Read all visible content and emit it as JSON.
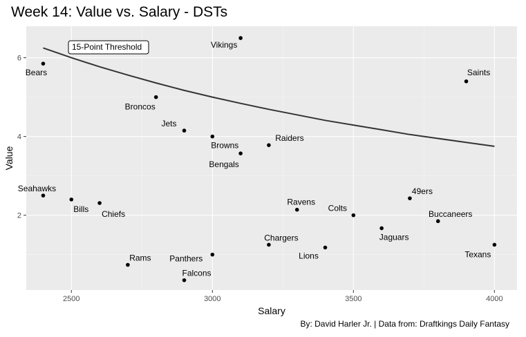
{
  "chart_data": {
    "type": "scatter",
    "title": "Week 14: Value vs. Salary - DSTs",
    "xlabel": "Salary",
    "ylabel": "Value",
    "caption": "By: David Harler Jr. | Data from: Draftkings Daily Fantasy",
    "xlim": [
      2340,
      4080
    ],
    "ylim": [
      0.1,
      6.8
    ],
    "xticks": [
      2500,
      3000,
      3500,
      4000
    ],
    "yticks": [
      2,
      4,
      6
    ],
    "grid": true,
    "legend": "none",
    "colors": {
      "panel": "#EBEBEB",
      "grid_major": "#FFFFFF",
      "grid_minor": "#F5F5F5",
      "point": "#000000",
      "line": "#333333"
    },
    "points": [
      {
        "label": "Bears",
        "x": 2400,
        "y": 5.85
      },
      {
        "label": "Vikings",
        "x": 3100,
        "y": 6.5
      },
      {
        "label": "Saints",
        "x": 3900,
        "y": 5.4
      },
      {
        "label": "Broncos",
        "x": 2800,
        "y": 5.0
      },
      {
        "label": "Jets",
        "x": 2900,
        "y": 4.15
      },
      {
        "label": "Browns",
        "x": 3000,
        "y": 4.0
      },
      {
        "label": "Raiders",
        "x": 3200,
        "y": 3.78
      },
      {
        "label": "Bengals",
        "x": 3100,
        "y": 3.57
      },
      {
        "label": "Seahawks",
        "x": 2400,
        "y": 2.5
      },
      {
        "label": "Bills",
        "x": 2500,
        "y": 2.4
      },
      {
        "label": "Chiefs",
        "x": 2600,
        "y": 2.31
      },
      {
        "label": "49ers",
        "x": 3700,
        "y": 2.43
      },
      {
        "label": "Ravens",
        "x": 3300,
        "y": 2.14
      },
      {
        "label": "Colts",
        "x": 3500,
        "y": 2.0
      },
      {
        "label": "Buccaneers",
        "x": 3800,
        "y": 1.85
      },
      {
        "label": "Jaguars",
        "x": 3600,
        "y": 1.67
      },
      {
        "label": "Chargers",
        "x": 3200,
        "y": 1.25
      },
      {
        "label": "Lions",
        "x": 3400,
        "y": 1.18
      },
      {
        "label": "Texans",
        "x": 4000,
        "y": 1.25
      },
      {
        "label": "Panthers",
        "x": 3000,
        "y": 1.0
      },
      {
        "label": "Rams",
        "x": 2700,
        "y": 0.74
      },
      {
        "label": "Falcons",
        "x": 2900,
        "y": 0.35
      }
    ],
    "threshold_line": {
      "label": "15-Point Threshold",
      "x": [
        2400,
        2500,
        2600,
        2700,
        2800,
        2900,
        3000,
        3100,
        3200,
        3300,
        3400,
        3500,
        3600,
        3700,
        3800,
        3900,
        4000
      ],
      "y": [
        6.25,
        6.0,
        5.77,
        5.56,
        5.36,
        5.17,
        5.0,
        4.84,
        4.69,
        4.55,
        4.41,
        4.29,
        4.17,
        4.05,
        3.95,
        3.85,
        3.75
      ]
    }
  }
}
